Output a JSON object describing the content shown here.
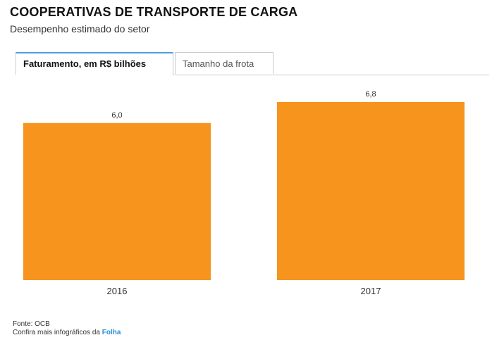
{
  "title": "COOPERATIVAS DE TRANSPORTE DE CARGA",
  "subtitle": "Desempenho estimado do setor",
  "tabs": [
    {
      "label": "Faturamento, em R$ bilhões",
      "active": true
    },
    {
      "label": "Tamanho da frota",
      "active": false
    }
  ],
  "colors": {
    "bar": "#f7941e",
    "active_tab_accent": "#4aa3df",
    "link": "#2a8fd6"
  },
  "chart_data": {
    "type": "bar",
    "categories": [
      "2016",
      "2017"
    ],
    "values": [
      6.0,
      6.8
    ],
    "value_labels": [
      "6,0",
      "6,8"
    ],
    "title": "",
    "xlabel": "",
    "ylabel": "",
    "ylim": [
      0,
      6.8
    ],
    "grid": false,
    "legend": "none"
  },
  "footer": {
    "source": "Fonte: OCB",
    "more_prefix": "Confira mais infográficos da ",
    "brand": "Folha"
  }
}
